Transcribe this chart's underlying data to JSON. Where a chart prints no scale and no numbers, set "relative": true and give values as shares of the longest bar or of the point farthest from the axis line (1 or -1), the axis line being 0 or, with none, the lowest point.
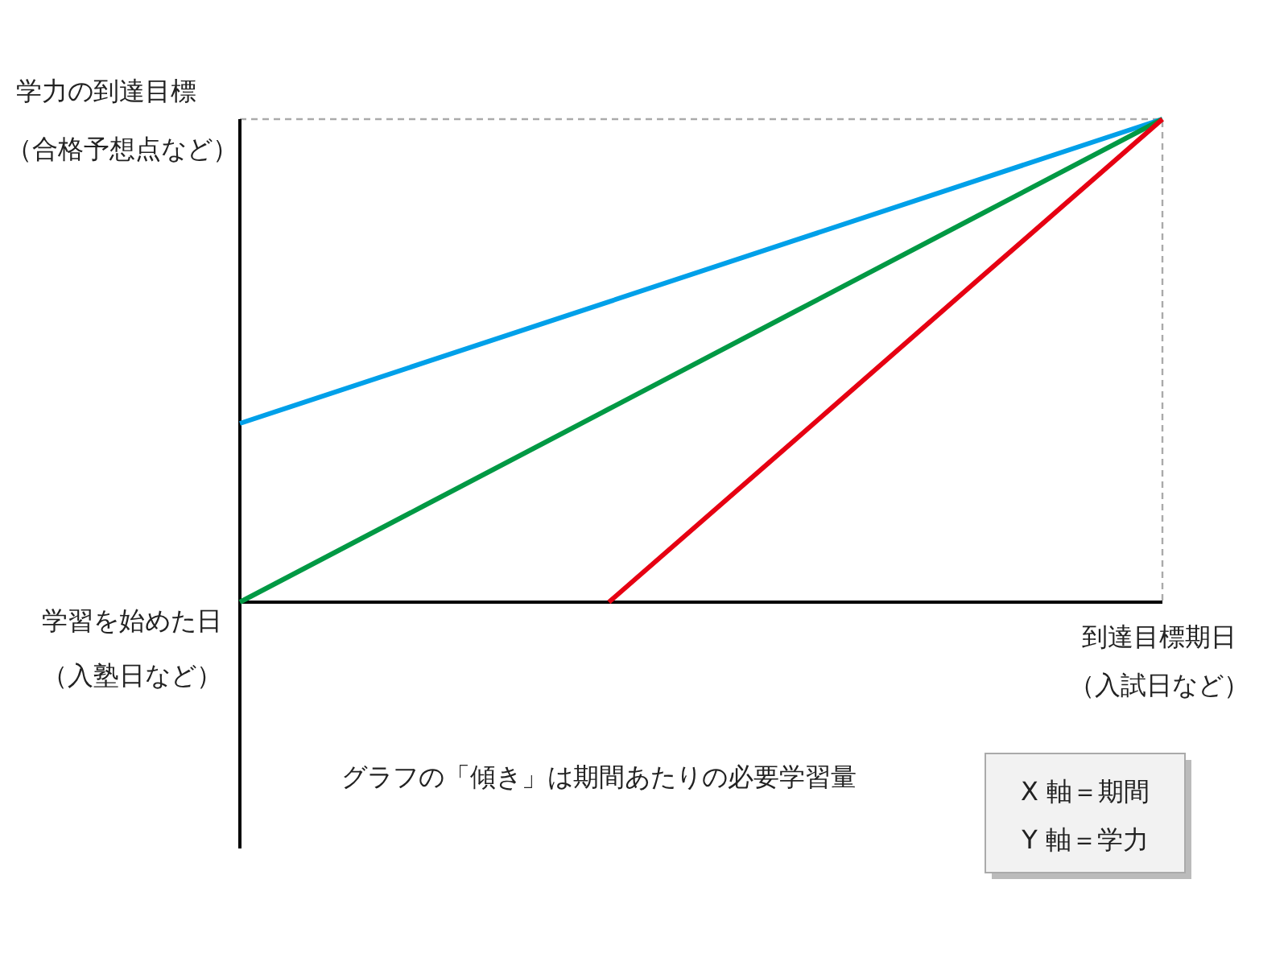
{
  "chart_data": {
    "type": "line",
    "relative": true,
    "ylabel": "学力の到達目標",
    "xlabel": "到達目標期日",
    "categories": [
      null,
      null,
      null,
      null,
      null,
      null
    ],
    "series": [
      {
        "type": "line",
        "color": "#00a0e9",
        "values": [
          0.37,
          0.496,
          0.622,
          0.748,
          0.874,
          1
        ]
      },
      {
        "type": "line",
        "color": "#009944",
        "values": [
          0,
          0.2,
          0.4,
          0.6,
          0.8,
          1
        ]
      },
      {
        "type": "line",
        "color": "#e60012",
        "values": [
          null,
          null,
          0,
          0.333,
          0.667,
          1
        ]
      }
    ],
    "ref_lines": [
      {
        "axis": "y",
        "value": 1,
        "color": "#aaaaaa",
        "line_style": "dashed"
      }
    ],
    "annotations": [
      "（合格予想点など）",
      "学習を始めた日",
      "（入塾日など）",
      "（入試日など）",
      "グラフの「傾き」は期間あたりの必要学習量",
      "X 軸＝期間",
      "Y 軸＝学力"
    ]
  }
}
